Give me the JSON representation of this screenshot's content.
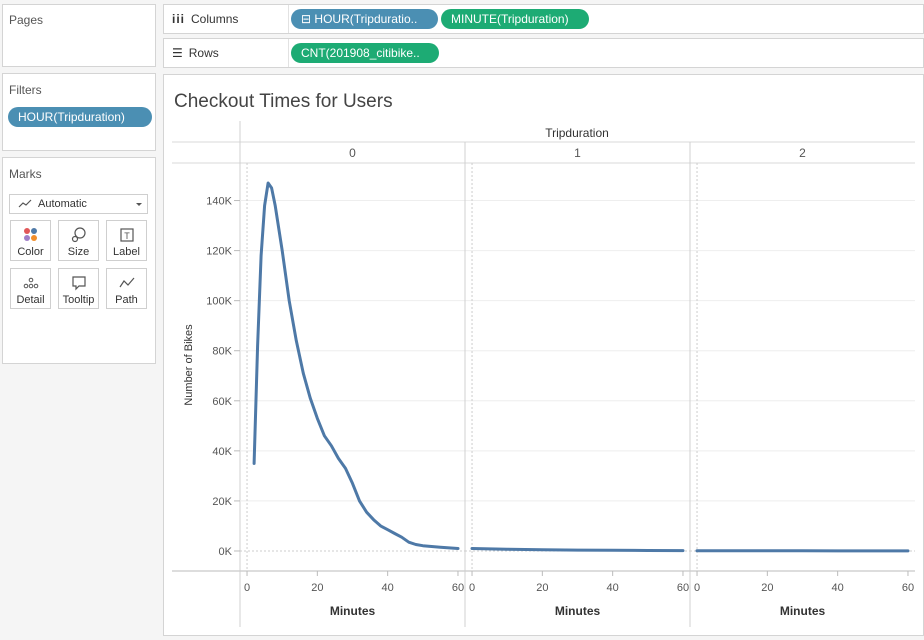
{
  "pages": {
    "title": "Pages"
  },
  "filters": {
    "title": "Filters",
    "pill": "HOUR(Tripduration)"
  },
  "marks": {
    "title": "Marks",
    "type": "Automatic",
    "buttons": [
      {
        "label": "Color",
        "icon": "color-icon"
      },
      {
        "label": "Size",
        "icon": "size-icon"
      },
      {
        "label": "Label",
        "icon": "label-icon"
      },
      {
        "label": "Detail",
        "icon": "detail-icon"
      },
      {
        "label": "Tooltip",
        "icon": "tooltip-icon"
      },
      {
        "label": "Path",
        "icon": "path-icon"
      }
    ]
  },
  "shelves": {
    "columns": {
      "label": "Columns",
      "pills": [
        "HOUR(Tripduratio..",
        "MINUTE(Tripduration)"
      ]
    },
    "rows": {
      "label": "Rows",
      "pills": [
        "CNT(201908_citibike.."
      ]
    }
  },
  "chart_data": {
    "type": "line",
    "title": "Checkout Times for Users",
    "column_header": "Tripduration",
    "panels": [
      {
        "label": "0",
        "x": [
          2,
          3,
          4,
          5,
          6,
          7,
          8,
          10,
          12,
          14,
          16,
          18,
          20,
          22,
          24,
          26,
          28,
          30,
          32,
          34,
          36,
          38,
          40,
          42,
          44,
          46,
          48,
          50,
          55,
          60
        ],
        "y": [
          35000,
          82000,
          118000,
          138000,
          147000,
          145000,
          138000,
          120000,
          100000,
          84000,
          71000,
          61000,
          53000,
          46000,
          42000,
          37000,
          33000,
          27000,
          20000,
          15500,
          12500,
          10000,
          8500,
          7000,
          5500,
          3500,
          2600,
          2100,
          1500,
          1000
        ]
      },
      {
        "label": "1",
        "x": [
          0,
          10,
          20,
          30,
          40,
          50,
          60
        ],
        "y": [
          1000,
          700,
          500,
          350,
          250,
          200,
          150
        ]
      },
      {
        "label": "2",
        "x": [
          0,
          10,
          20,
          30,
          40,
          50,
          60
        ],
        "y": [
          120,
          90,
          70,
          55,
          45,
          35,
          30
        ]
      }
    ],
    "xlabel": "Minutes",
    "ylabel": "Number of Bikes",
    "xlim": [
      -2,
      62
    ],
    "ylim": [
      -8000,
      155000
    ],
    "xticks": [
      0,
      20,
      40,
      60
    ],
    "yticks": [
      0,
      20000,
      40000,
      60000,
      80000,
      100000,
      120000,
      140000
    ],
    "ytick_labels": [
      "0K",
      "20K",
      "40K",
      "60K",
      "80K",
      "100K",
      "120K",
      "140K"
    ],
    "line_color": "#4e79a7"
  }
}
